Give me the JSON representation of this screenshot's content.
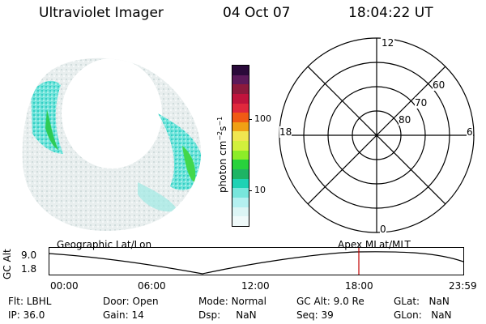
{
  "header": {
    "instrument": "Ultraviolet Imager",
    "date": "04 Oct 07",
    "time": "18:04:22 UT"
  },
  "colorbar": {
    "unit_label": "photon cm",
    "unit_exp1": "−2",
    "unit_s": "s",
    "unit_exp2": "−1",
    "ticks": [
      "100",
      "10"
    ],
    "colors": [
      "#2a0a3a",
      "#5b1a5a",
      "#8c1a3c",
      "#c0143c",
      "#e0283c",
      "#f05a14",
      "#f0a014",
      "#f0e650",
      "#d2f03c",
      "#8ced28",
      "#28d23c",
      "#1eb464",
      "#1ed2b4",
      "#78e6dc",
      "#b4f0f0",
      "#dcf5f5",
      "#f0fafa"
    ]
  },
  "polar_plot": {
    "mlt_labels": {
      "top": "12",
      "left": "18",
      "right": "6",
      "bottom": "0"
    },
    "lat_labels": [
      "60",
      "70",
      "80"
    ]
  },
  "timeline": {
    "y_axis_label": "GC Alt",
    "y_top": "9.0",
    "y_bottom": "1.8",
    "left_title": "Geographic Lat/Lon",
    "right_title": "Apex  MLat/MLT",
    "x_ticks": [
      "00:00",
      "06:00",
      "12:00",
      "18:00",
      "23:59"
    ],
    "marker_color": "#c00000"
  },
  "info_row1": {
    "flt_label": "Flt:",
    "flt_value": "LBHL",
    "door_label": "Door:",
    "door_value": "Open",
    "mode_label": "Mode:",
    "mode_value": "Normal",
    "gcalt_label": "GC Alt:",
    "gcalt_value": "9.0 Re",
    "glat_label": "GLat:",
    "glat_value": "NaN"
  },
  "info_row2": {
    "ip_label": "IP:",
    "ip_value": "36.0",
    "gain_label": "Gain:",
    "gain_value": "14",
    "dsp_label": "Dsp:",
    "dsp_value": "NaN",
    "seq_label": "Seq:",
    "seq_value": "39",
    "glon_label": "GLon:",
    "glon_value": "NaN"
  }
}
